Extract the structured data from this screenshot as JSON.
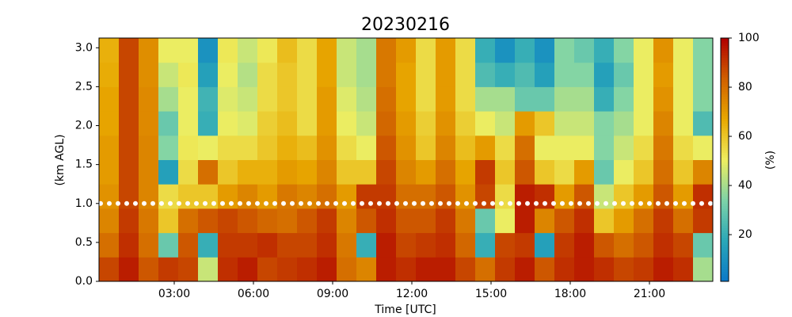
{
  "chart_data": {
    "type": "heatmap",
    "title": "20230216",
    "xlabel": "Time [UTC]",
    "ylabel": "(km AGL)",
    "colorbar_label": "(%)",
    "xlim": [
      0.15,
      23.4
    ],
    "ylim": [
      0,
      3.125
    ],
    "clim": [
      1,
      100
    ],
    "xticks": [
      {
        "value": 3,
        "label": "03:00"
      },
      {
        "value": 6,
        "label": "06:00"
      },
      {
        "value": 9,
        "label": "09:00"
      },
      {
        "value": 12,
        "label": "12:00"
      },
      {
        "value": 15,
        "label": "15:00"
      },
      {
        "value": 18,
        "label": "18:00"
      },
      {
        "value": 21,
        "label": "21:00"
      }
    ],
    "yticks": [
      {
        "value": 0,
        "label": "0.0"
      },
      0.5,
      {
        "value": 1,
        "label": "1.0"
      },
      1.5,
      {
        "value": 2,
        "label": "2.0"
      },
      2.5,
      {
        "value": 3,
        "label": "3.0"
      }
    ],
    "cticks": [
      20,
      40,
      60,
      80,
      100
    ],
    "colormap": [
      "#0a78c8",
      "#2aa7b8",
      "#7dd3a8",
      "#eeee60",
      "#e8a800",
      "#d06000",
      "#b00000"
    ],
    "hline": {
      "value": 1,
      "color": "#ffffff"
    },
    "x_edges": [
      0.15,
      0.9,
      1.65,
      2.4,
      3.15,
      3.9,
      4.65,
      5.4,
      6.15,
      6.9,
      7.65,
      8.4,
      9.15,
      9.9,
      10.65,
      11.4,
      12.15,
      12.9,
      13.65,
      14.4,
      15.15,
      15.9,
      16.65,
      17.4,
      18.15,
      18.9,
      19.65,
      20.4,
      21.15,
      21.9,
      22.65,
      23.4
    ],
    "y_edges": [
      0,
      0.3125,
      0.625,
      0.9375,
      1.25,
      1.5625,
      1.875,
      2.1875,
      2.5,
      2.8125,
      3.125
    ],
    "values": [
      [
        88,
        80,
        75,
        72,
        70,
        70,
        68,
        68,
        66,
        65
      ],
      [
        95,
        92,
        90,
        88,
        88,
        88,
        88,
        88,
        88,
        88
      ],
      [
        85,
        80,
        78,
        75,
        75,
        75,
        74,
        74,
        73,
        73
      ],
      [
        90,
        30,
        60,
        55,
        15,
        35,
        30,
        40,
        45,
        50
      ],
      [
        88,
        85,
        80,
        60,
        55,
        52,
        50,
        50,
        52,
        50
      ],
      [
        45,
        20,
        85,
        60,
        80,
        50,
        20,
        22,
        15,
        10
      ],
      [
        92,
        90,
        88,
        70,
        60,
        55,
        50,
        48,
        50,
        52
      ],
      [
        95,
        90,
        85,
        75,
        65,
        55,
        48,
        45,
        42,
        45
      ],
      [
        88,
        92,
        82,
        70,
        65,
        60,
        58,
        55,
        55,
        52
      ],
      [
        90,
        88,
        80,
        78,
        70,
        65,
        62,
        60,
        60,
        62
      ],
      [
        92,
        88,
        85,
        75,
        68,
        62,
        55,
        55,
        55,
        55
      ],
      [
        95,
        92,
        90,
        80,
        75,
        72,
        70,
        70,
        68,
        68
      ],
      [
        80,
        78,
        75,
        70,
        60,
        55,
        50,
        48,
        45,
        45
      ],
      [
        75,
        20,
        85,
        90,
        60,
        50,
        45,
        42,
        40,
        40
      ],
      [
        95,
        95,
        92,
        90,
        88,
        85,
        82,
        80,
        78,
        78
      ],
      [
        92,
        88,
        85,
        80,
        75,
        72,
        70,
        68,
        68,
        70
      ],
      [
        95,
        90,
        85,
        80,
        70,
        60,
        58,
        55,
        55,
        55
      ],
      [
        95,
        92,
        90,
        85,
        80,
        75,
        72,
        70,
        70,
        70
      ],
      [
        88,
        82,
        78,
        72,
        68,
        62,
        58,
        55,
        55,
        55
      ],
      [
        80,
        20,
        30,
        88,
        90,
        70,
        50,
        40,
        25,
        20
      ],
      [
        90,
        88,
        50,
        55,
        60,
        55,
        45,
        40,
        20,
        10
      ],
      [
        95,
        90,
        95,
        95,
        85,
        80,
        70,
        30,
        25,
        20
      ],
      [
        85,
        15,
        75,
        92,
        60,
        50,
        60,
        30,
        15,
        10
      ],
      [
        92,
        90,
        85,
        70,
        55,
        50,
        45,
        40,
        35,
        35
      ],
      [
        95,
        95,
        92,
        85,
        70,
        50,
        45,
        40,
        35,
        30
      ],
      [
        92,
        85,
        60,
        45,
        30,
        35,
        35,
        20,
        15,
        20
      ],
      [
        88,
        80,
        70,
        60,
        50,
        45,
        40,
        35,
        30,
        35
      ],
      [
        90,
        85,
        80,
        70,
        60,
        55,
        50,
        50,
        50,
        50
      ],
      [
        95,
        92,
        90,
        85,
        80,
        78,
        75,
        72,
        70,
        72
      ],
      [
        92,
        88,
        80,
        70,
        60,
        55,
        50,
        50,
        50,
        50
      ],
      [
        40,
        30,
        90,
        92,
        75,
        50,
        25,
        35,
        35,
        35
      ]
    ]
  }
}
